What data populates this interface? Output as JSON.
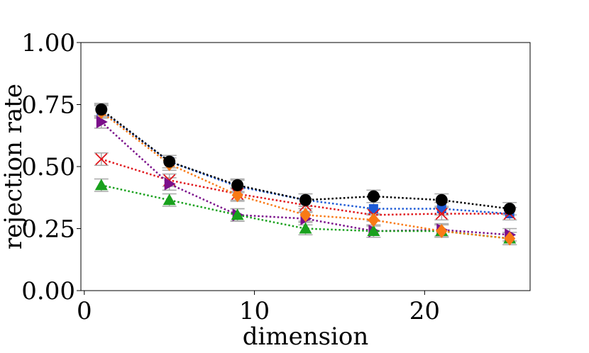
{
  "chart_data": {
    "type": "line",
    "title": "",
    "xlabel": "dimension",
    "ylabel": "rejection rate",
    "xlim": [
      -0.2,
      26.2
    ],
    "ylim": [
      0,
      1
    ],
    "x_ticks": [
      0,
      10,
      20
    ],
    "y_ticks": [
      0,
      0.25,
      0.5,
      0.75,
      1
    ],
    "x_tick_labels": [
      "0",
      "10",
      "20"
    ],
    "y_tick_labels": [
      "0.00",
      "0.25",
      "0.50",
      "0.75",
      "1.00"
    ],
    "x": [
      1,
      5,
      9,
      13,
      17,
      21,
      25
    ],
    "grid": false,
    "legend": "none",
    "series": [
      {
        "name": "blue squares",
        "color": "#1f5bd6",
        "marker": "square",
        "values": [
          0.725,
          0.52,
          0.42,
          0.365,
          0.33,
          0.33,
          0.31
        ],
        "err": 0.025
      },
      {
        "name": "red crosses",
        "color": "#e0161b",
        "marker": "x",
        "values": [
          0.53,
          0.445,
          0.39,
          0.345,
          0.305,
          0.31,
          0.31
        ],
        "err": 0.025
      },
      {
        "name": "purple triangles",
        "color": "#7a0f8a",
        "marker": "triangle-right",
        "values": [
          0.68,
          0.43,
          0.305,
          0.29,
          0.24,
          0.245,
          0.225
        ],
        "err": 0.025
      },
      {
        "name": "green triangles",
        "color": "#19a11d",
        "marker": "triangle-up",
        "values": [
          0.425,
          0.365,
          0.305,
          0.25,
          0.24,
          0.24,
          0.21
        ],
        "err": 0.025
      },
      {
        "name": "orange diamonds",
        "color": "#f97a16",
        "marker": "diamond",
        "values": [
          0.72,
          0.51,
          0.385,
          0.305,
          0.285,
          0.24,
          0.21
        ],
        "err": 0.025
      },
      {
        "name": "black circles",
        "color": "#000000",
        "marker": "circle",
        "values": [
          0.73,
          0.52,
          0.425,
          0.365,
          0.38,
          0.365,
          0.33
        ],
        "err": 0.025
      }
    ]
  }
}
